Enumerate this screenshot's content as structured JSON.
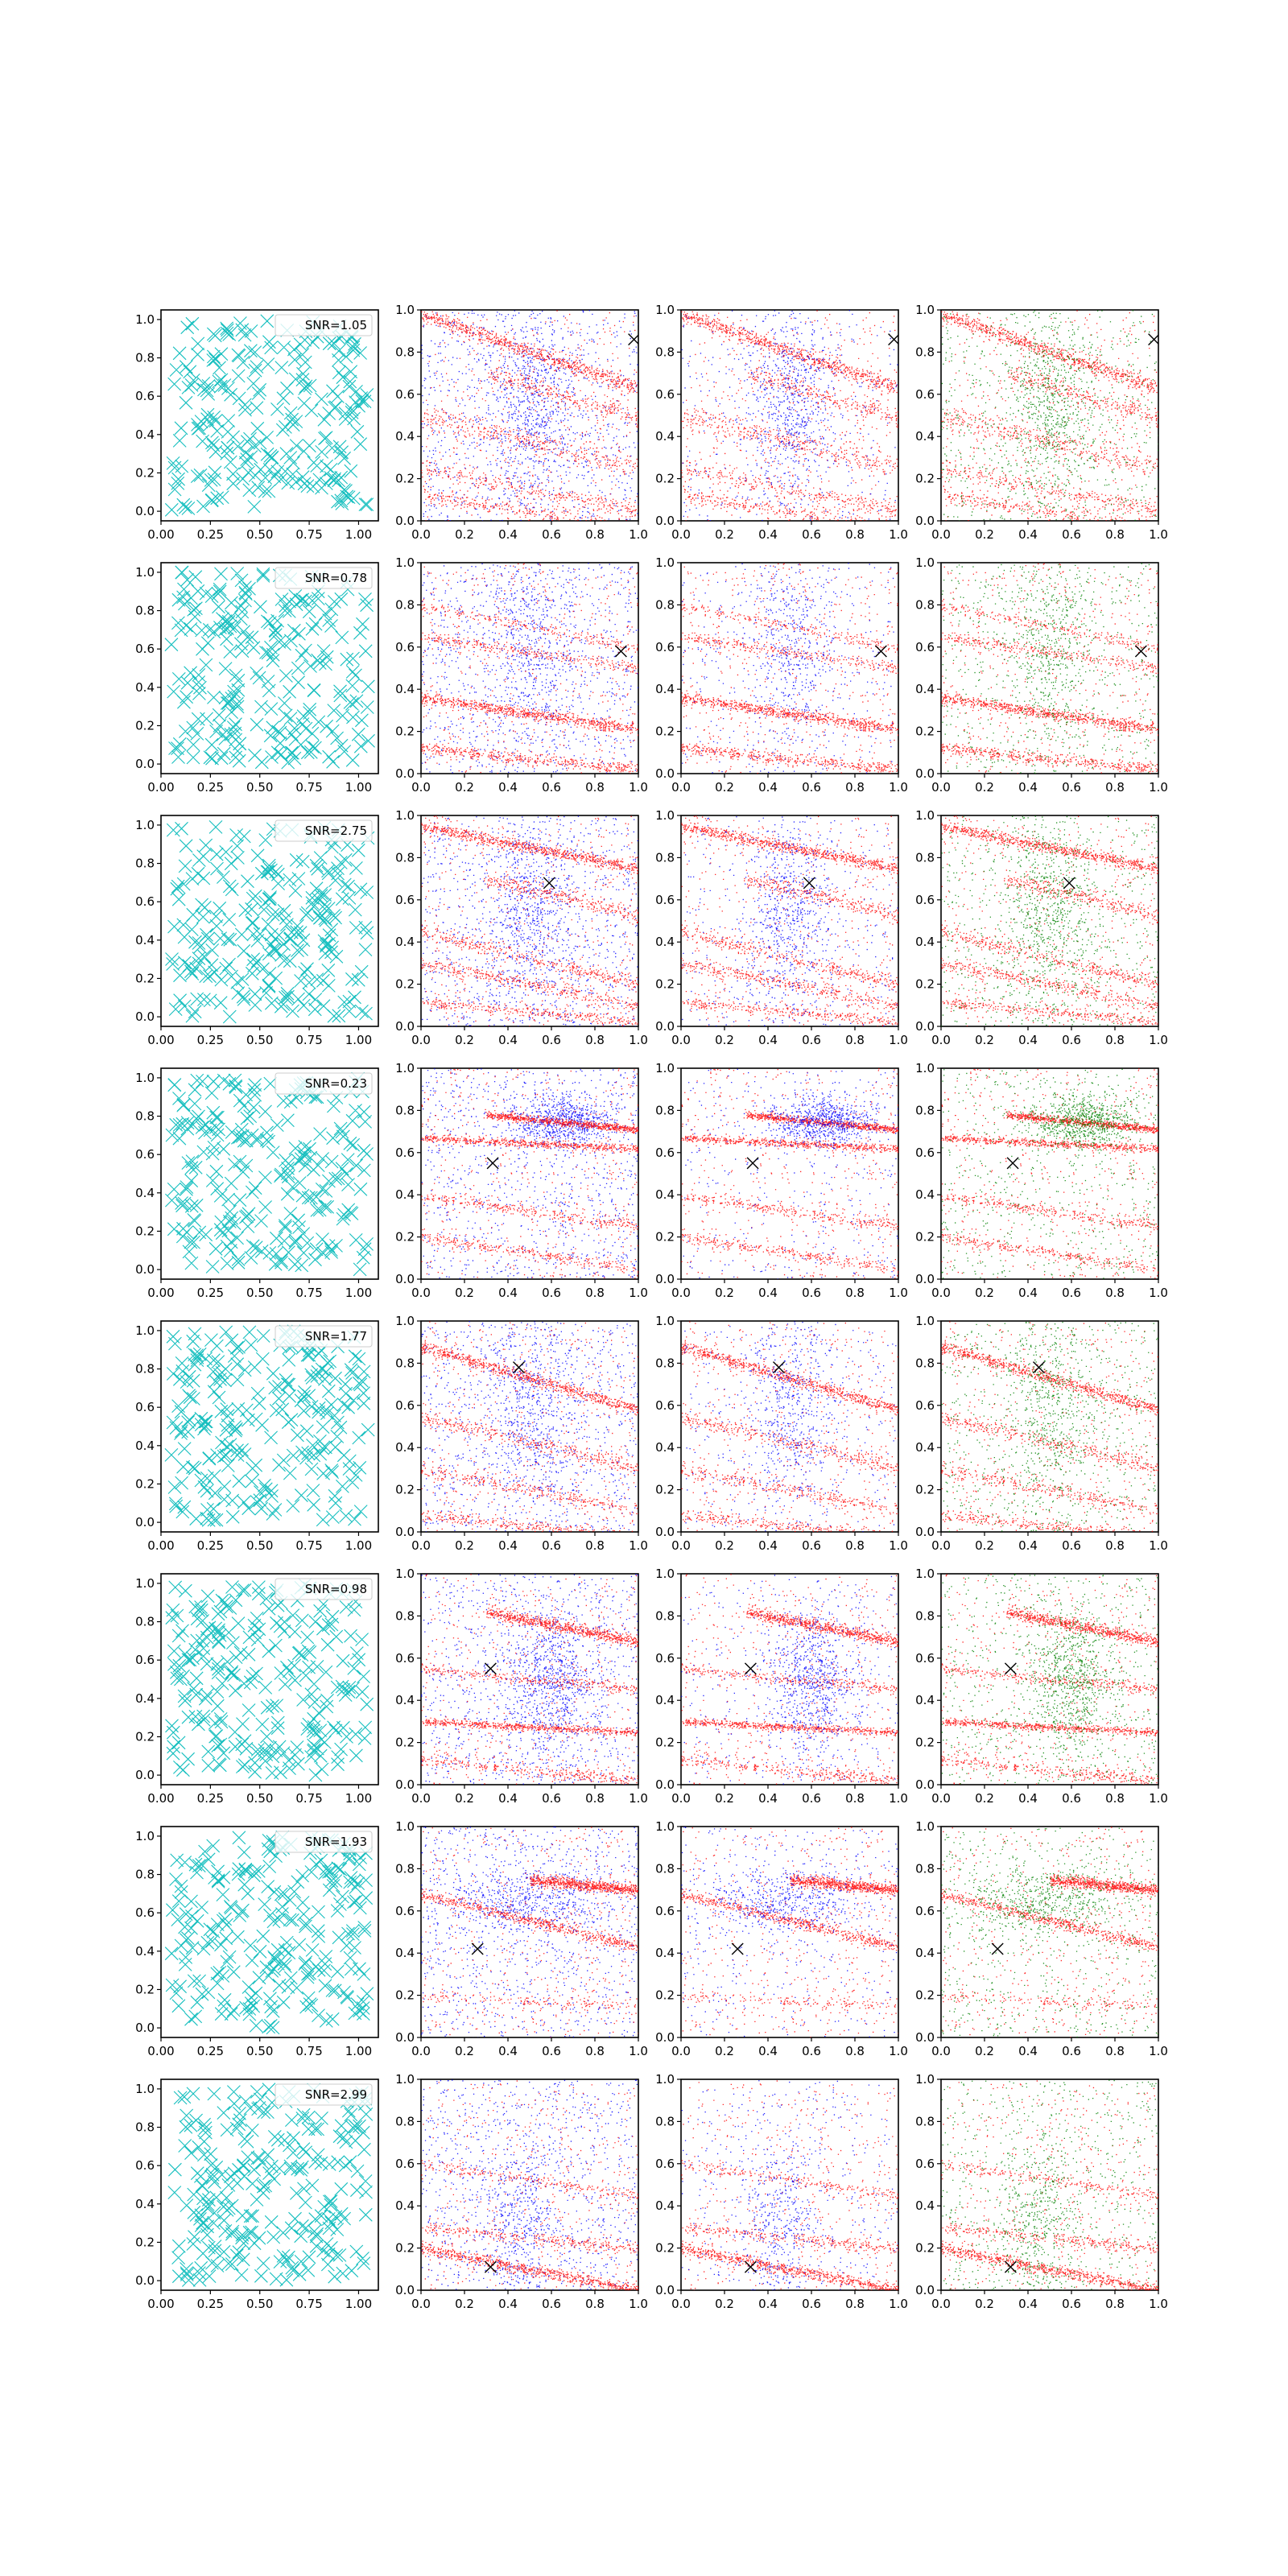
{
  "figure": {
    "grid_rows": 8,
    "grid_cols": 4,
    "background": "#ffffff"
  },
  "colors": {
    "cyan_marker": "#17bfbf",
    "blue": "#0000ff",
    "red": "#ff0000",
    "green": "#008000",
    "target_marker": "#000000"
  },
  "chart_data": [
    {
      "row": 0,
      "type": "scatter",
      "legend": "SNR=1.05",
      "target": [
        0.98,
        0.86
      ],
      "streaks": [
        [
          0.0,
          0.98,
          -0.35,
          0.04,
          1.0
        ],
        [
          0.0,
          0.5,
          -0.25,
          0.06,
          0.5
        ],
        [
          0.0,
          0.25,
          -0.2,
          0.05,
          0.4
        ],
        [
          0.0,
          0.12,
          -0.15,
          0.04,
          0.4
        ],
        [
          0.3,
          0.7,
          -0.3,
          0.05,
          0.4
        ]
      ],
      "blob": [
        0.5,
        0.55,
        0.1,
        0.25,
        0.7
      ],
      "xlim": [
        0,
        1
      ],
      "ylim": [
        0,
        1
      ],
      "left_ticks": [
        "0.00",
        "0.25",
        "0.50",
        "0.75",
        "1.00"
      ],
      "right_ticks": [
        "0.0",
        "0.2",
        "0.4",
        "0.6",
        "0.8",
        "1.0"
      ]
    },
    {
      "row": 1,
      "type": "scatter",
      "legend": "SNR=0.78",
      "target": [
        0.92,
        0.58
      ],
      "streaks": [
        [
          0.0,
          0.36,
          -0.15,
          0.03,
          1.0
        ],
        [
          0.0,
          0.12,
          -0.1,
          0.03,
          0.6
        ],
        [
          0.0,
          0.65,
          -0.15,
          0.03,
          0.4
        ],
        [
          0.0,
          0.8,
          -0.2,
          0.03,
          0.3
        ]
      ],
      "blob": [
        0.5,
        0.6,
        0.1,
        0.25,
        0.5
      ],
      "xlim": [
        0,
        1
      ],
      "ylim": [
        0,
        1
      ],
      "left_ticks": [
        "0.00",
        "0.25",
        "0.50",
        "0.75",
        "1.00"
      ],
      "right_ticks": [
        "0.0",
        "0.2",
        "0.4",
        "0.6",
        "0.8",
        "1.0"
      ]
    },
    {
      "row": 2,
      "type": "scatter",
      "legend": "SNR=2.75",
      "target": [
        0.59,
        0.68
      ],
      "streaks": [
        [
          0.0,
          0.95,
          -0.2,
          0.03,
          1.0
        ],
        [
          0.0,
          0.45,
          -0.25,
          0.04,
          0.5
        ],
        [
          0.0,
          0.3,
          -0.2,
          0.04,
          0.5
        ],
        [
          0.0,
          0.12,
          -0.1,
          0.03,
          0.4
        ],
        [
          0.3,
          0.7,
          -0.25,
          0.04,
          0.4
        ]
      ],
      "blob": [
        0.5,
        0.55,
        0.1,
        0.25,
        0.7
      ],
      "xlim": [
        0,
        1
      ],
      "ylim": [
        0,
        1
      ],
      "left_ticks": [
        "0.00",
        "0.25",
        "0.50",
        "0.75",
        "1.00"
      ],
      "right_ticks": [
        "0.0",
        "0.2",
        "0.4",
        "0.6",
        "0.8",
        "1.0"
      ]
    },
    {
      "row": 3,
      "type": "scatter",
      "legend": "SNR=0.23",
      "target": [
        0.33,
        0.55
      ],
      "streaks": [
        [
          0.3,
          0.78,
          -0.1,
          0.02,
          1.0
        ],
        [
          0.0,
          0.67,
          -0.05,
          0.02,
          0.8
        ],
        [
          0.0,
          0.4,
          -0.15,
          0.03,
          0.4
        ],
        [
          0.0,
          0.2,
          -0.15,
          0.03,
          0.4
        ]
      ],
      "blob": [
        0.65,
        0.75,
        0.12,
        0.06,
        0.8
      ],
      "xlim": [
        0,
        1
      ],
      "ylim": [
        0,
        1
      ],
      "left_ticks": [
        "0.00",
        "0.25",
        "0.50",
        "0.75",
        "1.00"
      ],
      "right_ticks": [
        "0.0",
        "0.2",
        "0.4",
        "0.6",
        "0.8",
        "1.0"
      ]
    },
    {
      "row": 4,
      "type": "scatter",
      "legend": "SNR=1.77",
      "target": [
        0.45,
        0.78
      ],
      "streaks": [
        [
          0.0,
          0.88,
          -0.3,
          0.03,
          1.0
        ],
        [
          0.0,
          0.55,
          -0.25,
          0.04,
          0.5
        ],
        [
          0.0,
          0.3,
          -0.2,
          0.04,
          0.4
        ],
        [
          0.0,
          0.08,
          -0.1,
          0.03,
          0.4
        ]
      ],
      "blob": [
        0.5,
        0.6,
        0.1,
        0.25,
        0.6
      ],
      "xlim": [
        0,
        1
      ],
      "ylim": [
        0,
        1
      ],
      "left_ticks": [
        "0.00",
        "0.25",
        "0.50",
        "0.75",
        "1.00"
      ],
      "right_ticks": [
        "0.0",
        "0.2",
        "0.4",
        "0.6",
        "0.8",
        "1.0"
      ]
    },
    {
      "row": 5,
      "type": "scatter",
      "legend": "SNR=0.98",
      "target": [
        0.32,
        0.55
      ],
      "streaks": [
        [
          0.3,
          0.82,
          -0.2,
          0.03,
          1.0
        ],
        [
          0.0,
          0.3,
          -0.05,
          0.02,
          0.8
        ],
        [
          0.0,
          0.55,
          -0.1,
          0.03,
          0.4
        ],
        [
          0.0,
          0.12,
          -0.1,
          0.03,
          0.4
        ]
      ],
      "blob": [
        0.6,
        0.5,
        0.1,
        0.18,
        0.8
      ],
      "xlim": [
        0,
        1
      ],
      "ylim": [
        0,
        1
      ],
      "left_ticks": [
        "0.00",
        "0.25",
        "0.50",
        "0.75",
        "1.00"
      ],
      "right_ticks": [
        "0.0",
        "0.2",
        "0.4",
        "0.6",
        "0.8",
        "1.0"
      ]
    },
    {
      "row": 6,
      "type": "scatter",
      "legend": "SNR=1.93",
      "target": [
        0.26,
        0.42
      ],
      "streaks": [
        [
          0.0,
          0.68,
          -0.25,
          0.03,
          0.8
        ],
        [
          0.5,
          0.75,
          -0.1,
          0.03,
          1.0
        ],
        [
          0.0,
          0.2,
          -0.05,
          0.03,
          0.2
        ]
      ],
      "blob": [
        0.45,
        0.65,
        0.2,
        0.08,
        0.6
      ],
      "xlim": [
        0,
        1
      ],
      "ylim": [
        0,
        1
      ],
      "left_ticks": [
        "0.00",
        "0.25",
        "0.50",
        "0.75",
        "1.00"
      ],
      "right_ticks": [
        "0.0",
        "0.2",
        "0.4",
        "0.6",
        "0.8",
        "1.0"
      ]
    },
    {
      "row": 7,
      "type": "scatter",
      "legend": "SNR=2.99",
      "target": [
        0.32,
        0.11
      ],
      "streaks": [
        [
          0.0,
          0.2,
          -0.2,
          0.03,
          1.0
        ],
        [
          0.0,
          0.3,
          -0.1,
          0.03,
          0.4
        ],
        [
          0.0,
          0.6,
          -0.15,
          0.03,
          0.3
        ]
      ],
      "blob": [
        0.45,
        0.3,
        0.1,
        0.25,
        0.5
      ],
      "xlim": [
        0,
        1
      ],
      "ylim": [
        0,
        1
      ],
      "left_ticks": [
        "0.00",
        "0.25",
        "0.50",
        "0.75",
        "1.00"
      ],
      "right_ticks": [
        "0.0",
        "0.2",
        "0.4",
        "0.6",
        "0.8",
        "1.0"
      ]
    }
  ]
}
